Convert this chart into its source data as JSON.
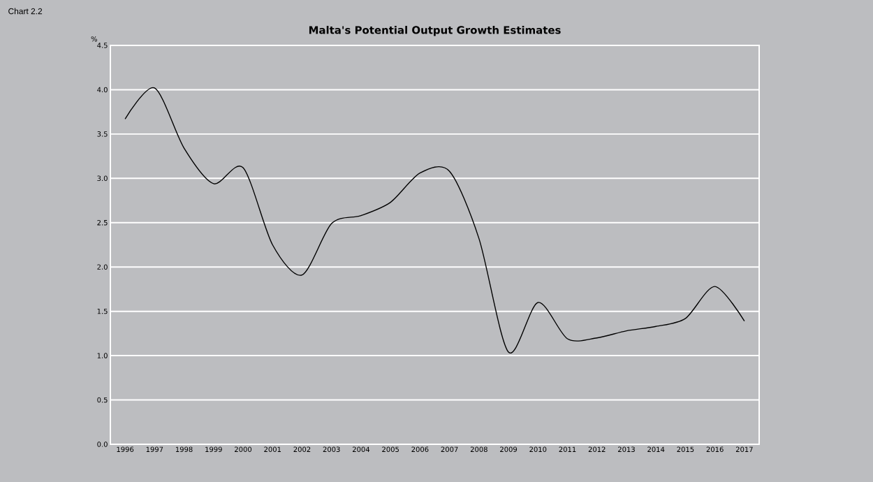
{
  "chart_data": {
    "type": "line",
    "title": "Malta's Potential Output Growth Estimates",
    "ylabel": "%",
    "annotations": [
      "Chart 2.2"
    ],
    "categories": [
      "1996",
      "1997",
      "1998",
      "1999",
      "2000",
      "2001",
      "2002",
      "2003",
      "2004",
      "2005",
      "2006",
      "2007",
      "2008",
      "2009",
      "2010",
      "2011",
      "2012",
      "2013",
      "2014",
      "2015",
      "2016",
      "2017"
    ],
    "series": [
      {
        "color": "#000000",
        "values": [
          3.67,
          4.02,
          3.34,
          2.94,
          3.12,
          2.25,
          1.91,
          2.49,
          2.58,
          2.73,
          3.06,
          3.08,
          2.32,
          1.04,
          1.6,
          1.19,
          1.2,
          1.28,
          1.33,
          1.42,
          1.78,
          1.39
        ]
      }
    ],
    "ylim": [
      0,
      4.5
    ],
    "yticks": [
      {
        "value": 0,
        "label": "0.0"
      },
      {
        "value": 0.5,
        "label": "0.5"
      },
      {
        "value": 1,
        "label": "1.0"
      },
      {
        "value": 1.5,
        "label": "1.5"
      },
      {
        "value": 2,
        "label": "2.0"
      },
      {
        "value": 2.5,
        "label": "2.5"
      },
      {
        "value": 3,
        "label": "3.0"
      },
      {
        "value": 3.5,
        "label": "3.5"
      },
      {
        "value": 4,
        "label": "4.0"
      },
      {
        "value": 4.5,
        "label": "4.5"
      }
    ],
    "grid": "y"
  }
}
